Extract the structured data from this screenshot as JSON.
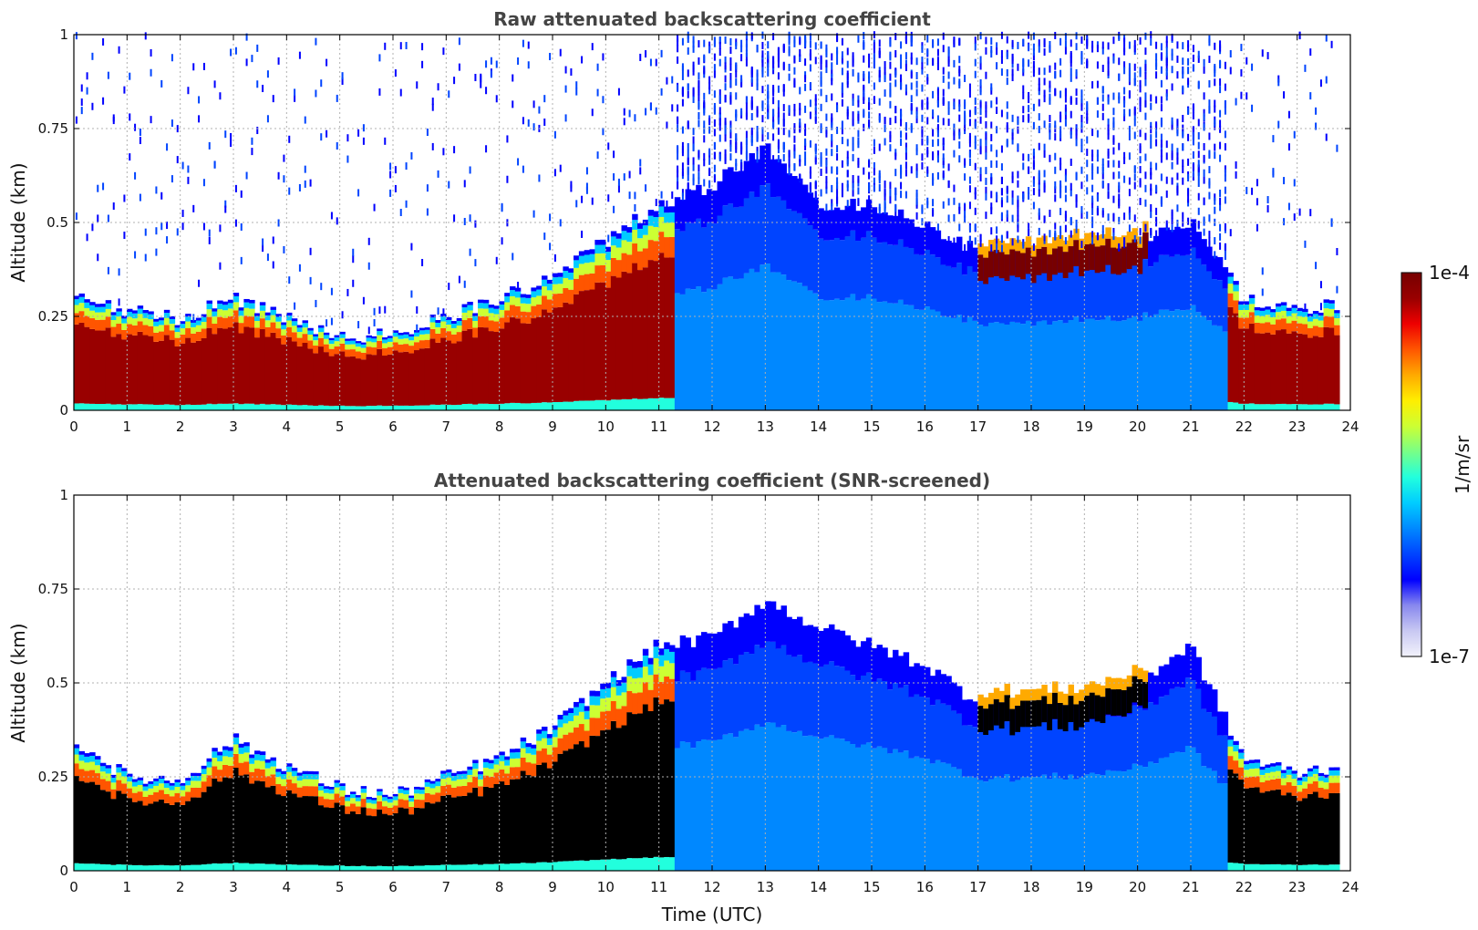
{
  "colorbar": {
    "label": "1/m/sr",
    "max_label": "1e-4",
    "min_label": "1e-7",
    "scale": "log",
    "range": [
      1e-07,
      0.0001
    ],
    "colormap": [
      "#f2f2fb",
      "#c8c8f2",
      "#8888ee",
      "#0000ff",
      "#0044ff",
      "#0088ff",
      "#00ccff",
      "#22ffdd",
      "#77ff88",
      "#ccff33",
      "#ffee00",
      "#ffaa00",
      "#ff5500",
      "#ee0000",
      "#990000",
      "#770000"
    ]
  },
  "chart_data": [
    {
      "type": "heatmap",
      "title": "Raw attenuated backscattering coefficient",
      "xlabel": "",
      "ylabel": "Altitude (km)",
      "xlim": [
        0,
        24
      ],
      "ylim": [
        0,
        1
      ],
      "x_ticks": [
        "0",
        "1",
        "2",
        "3",
        "4",
        "5",
        "6",
        "7",
        "8",
        "9",
        "10",
        "11",
        "12",
        "13",
        "14",
        "15",
        "16",
        "17",
        "18",
        "19",
        "20",
        "21",
        "22",
        "23",
        "24"
      ],
      "y_ticks": [
        "0",
        "0.25",
        "0.5",
        "0.75",
        "1"
      ],
      "grid": true,
      "layer_top_km": {
        "time_utc": [
          0,
          1,
          2,
          3,
          4,
          5,
          6,
          7,
          8,
          9,
          10,
          11,
          12,
          13,
          14,
          15,
          16,
          17,
          18,
          19,
          20,
          21,
          22,
          23,
          23.8
        ],
        "altitude": [
          0.3,
          0.27,
          0.24,
          0.3,
          0.25,
          0.2,
          0.2,
          0.25,
          0.3,
          0.35,
          0.45,
          0.55,
          0.6,
          0.7,
          0.55,
          0.55,
          0.5,
          0.42,
          0.42,
          0.44,
          0.45,
          0.5,
          0.3,
          0.27,
          0.28
        ]
      },
      "noise_period_utc": [
        11.3,
        21.7
      ]
    },
    {
      "type": "heatmap",
      "title": "Attenuated backscattering coefficient (SNR-screened)",
      "xlabel": "Time (UTC)",
      "ylabel": "Altitude (km)",
      "xlim": [
        0,
        24
      ],
      "ylim": [
        0,
        1
      ],
      "x_ticks": [
        "0",
        "1",
        "2",
        "3",
        "4",
        "5",
        "6",
        "7",
        "8",
        "9",
        "10",
        "11",
        "12",
        "13",
        "14",
        "15",
        "16",
        "17",
        "18",
        "19",
        "20",
        "21",
        "22",
        "23",
        "24"
      ],
      "y_ticks": [
        "0",
        "0.25",
        "0.5",
        "0.75",
        "1"
      ],
      "grid": true,
      "layer_top_km": {
        "time_utc": [
          0,
          1,
          2,
          3,
          4,
          5,
          6,
          7,
          8,
          9,
          10,
          11,
          12,
          13,
          14,
          15,
          16,
          17,
          18,
          19,
          20,
          21,
          22,
          23,
          23.8
        ],
        "altitude": [
          0.35,
          0.25,
          0.24,
          0.35,
          0.28,
          0.22,
          0.2,
          0.25,
          0.3,
          0.38,
          0.5,
          0.6,
          0.62,
          0.72,
          0.65,
          0.6,
          0.55,
          0.45,
          0.45,
          0.46,
          0.5,
          0.6,
          0.3,
          0.26,
          0.28
        ]
      }
    }
  ]
}
